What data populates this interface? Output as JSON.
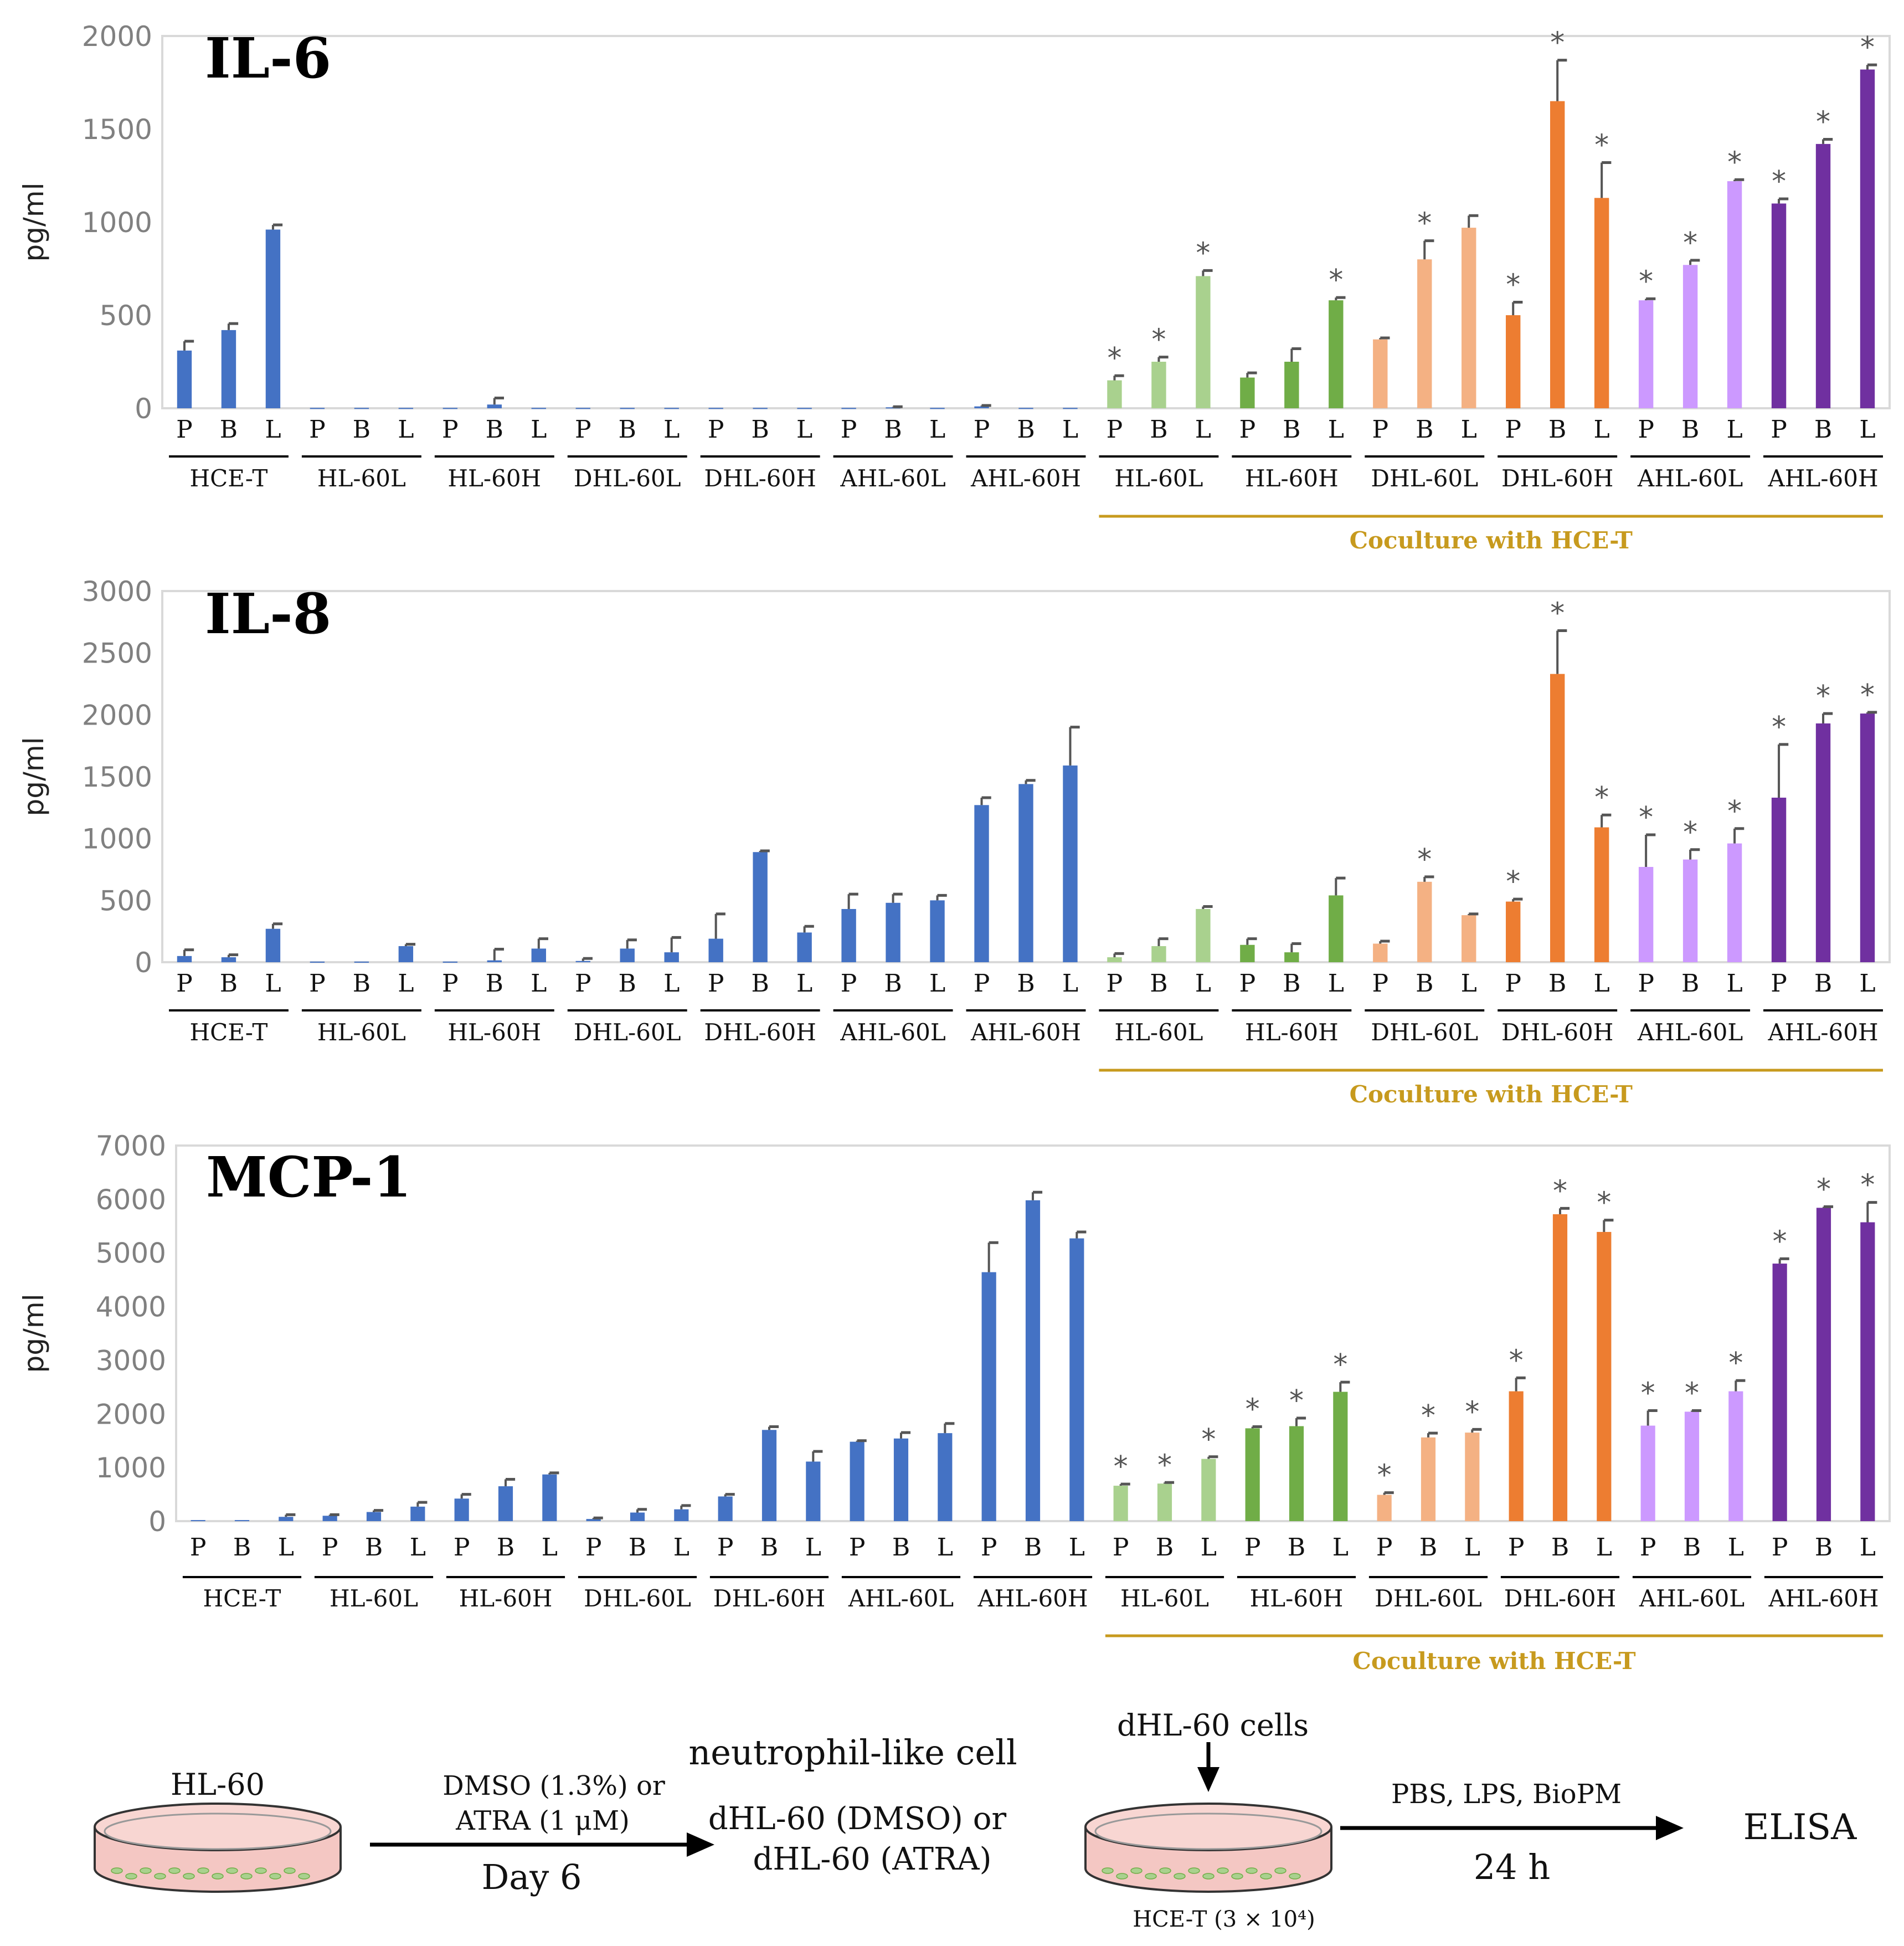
{
  "colors": {
    "blue": "#4472C4",
    "light_green": "#A9D18E",
    "green": "#70AD47",
    "light_orange": "#F4B183",
    "orange": "#ED7D31",
    "light_purple": "#CC99FF",
    "purple": "#7030A0",
    "error": "#555555",
    "coculture": "#C79A1E"
  },
  "chart_data": [
    {
      "type": "bar",
      "title": "IL-6",
      "ylabel": "pg/ml",
      "ylim": [
        0,
        2000
      ],
      "yticks": [
        "0",
        "500",
        "1000",
        "1500",
        "2000"
      ],
      "ytick_values": [
        0,
        500,
        1000,
        1500,
        2000
      ],
      "categories": [
        "P",
        "B",
        "L",
        "P",
        "B",
        "L",
        "P",
        "B",
        "L",
        "P",
        "B",
        "L",
        "P",
        "B",
        "L",
        "P",
        "B",
        "L",
        "P",
        "B",
        "L",
        "P",
        "B",
        "L",
        "P",
        "B",
        "L",
        "P",
        "B",
        "L",
        "P",
        "B",
        "L",
        "P",
        "B",
        "L",
        "P",
        "B",
        "L"
      ],
      "groups": [
        "HCE-T",
        "HL-60L",
        "HL-60H",
        "DHL-60L",
        "DHL-60H",
        "AHL-60L",
        "AHL-60H",
        "HL-60L",
        "HL-60H",
        "DHL-60L",
        "DHL-60H",
        "AHL-60L",
        "AHL-60H"
      ],
      "group_colors": [
        "blue",
        "blue",
        "blue",
        "blue",
        "blue",
        "blue",
        "blue",
        "light_green",
        "green",
        "light_orange",
        "orange",
        "light_purple",
        "purple"
      ],
      "values": [
        310,
        420,
        960,
        2,
        2,
        2,
        2,
        20,
        2,
        2,
        2,
        2,
        2,
        2,
        2,
        2,
        5,
        2,
        10,
        2,
        2,
        150,
        250,
        710,
        165,
        250,
        580,
        370,
        800,
        970,
        500,
        1650,
        1130,
        580,
        770,
        1220,
        1100,
        1420,
        1820
      ],
      "errors": [
        50,
        35,
        25,
        0,
        0,
        0,
        0,
        35,
        0,
        0,
        0,
        0,
        0,
        0,
        0,
        0,
        3,
        0,
        5,
        0,
        0,
        25,
        25,
        30,
        25,
        70,
        15,
        8,
        100,
        65,
        70,
        220,
        190,
        8,
        25,
        8,
        25,
        25,
        25
      ],
      "significant": [
        false,
        false,
        false,
        false,
        false,
        false,
        false,
        false,
        false,
        false,
        false,
        false,
        false,
        false,
        false,
        false,
        false,
        false,
        false,
        false,
        false,
        true,
        true,
        true,
        false,
        false,
        true,
        false,
        true,
        false,
        true,
        true,
        true,
        true,
        true,
        true,
        true,
        true,
        true
      ],
      "coculture_label": "Coculture with HCE-T"
    },
    {
      "type": "bar",
      "title": "IL-8",
      "ylabel": "pg/ml",
      "ylim": [
        0,
        3000
      ],
      "yticks": [
        "0",
        "500",
        "1000",
        "1500",
        "2000",
        "2500",
        "3000"
      ],
      "ytick_values": [
        0,
        500,
        1000,
        1500,
        2000,
        2500,
        3000
      ],
      "categories": [
        "P",
        "B",
        "L",
        "P",
        "B",
        "L",
        "P",
        "B",
        "L",
        "P",
        "B",
        "L",
        "P",
        "B",
        "L",
        "P",
        "B",
        "L",
        "P",
        "B",
        "L",
        "P",
        "B",
        "L",
        "P",
        "B",
        "L",
        "P",
        "B",
        "L",
        "P",
        "B",
        "L",
        "P",
        "B",
        "L",
        "P",
        "B",
        "L"
      ],
      "groups": [
        "HCE-T",
        "HL-60L",
        "HL-60H",
        "DHL-60L",
        "DHL-60H",
        "AHL-60L",
        "AHL-60H",
        "HL-60L",
        "HL-60H",
        "DHL-60L",
        "DHL-60H",
        "AHL-60L",
        "AHL-60H"
      ],
      "group_colors": [
        "blue",
        "blue",
        "blue",
        "blue",
        "blue",
        "blue",
        "blue",
        "light_green",
        "green",
        "light_orange",
        "orange",
        "light_purple",
        "purple"
      ],
      "values": [
        50,
        40,
        270,
        5,
        5,
        130,
        5,
        15,
        110,
        10,
        110,
        80,
        190,
        890,
        240,
        430,
        480,
        500,
        1270,
        1440,
        1590,
        40,
        130,
        430,
        140,
        80,
        540,
        150,
        650,
        380,
        490,
        2330,
        1090,
        770,
        830,
        960,
        1330,
        1930,
        2010
      ],
      "errors": [
        50,
        20,
        40,
        0,
        0,
        15,
        0,
        90,
        80,
        20,
        70,
        120,
        200,
        10,
        50,
        120,
        70,
        40,
        60,
        30,
        310,
        30,
        60,
        20,
        50,
        70,
        140,
        20,
        40,
        10,
        20,
        350,
        100,
        260,
        80,
        120,
        430,
        80,
        10
      ],
      "significant": [
        false,
        false,
        false,
        false,
        false,
        false,
        false,
        false,
        false,
        false,
        false,
        false,
        false,
        false,
        false,
        false,
        false,
        false,
        false,
        false,
        false,
        false,
        false,
        false,
        false,
        false,
        false,
        false,
        true,
        false,
        true,
        true,
        true,
        true,
        true,
        true,
        true,
        true,
        true
      ],
      "coculture_label": "Coculture with HCE-T"
    },
    {
      "type": "bar",
      "title": "MCP-1",
      "ylabel": "pg/ml",
      "ylim": [
        0,
        7000
      ],
      "yticks": [
        "0",
        "1000",
        "2000",
        "3000",
        "4000",
        "5000",
        "6000",
        "7000"
      ],
      "ytick_values": [
        0,
        1000,
        2000,
        3000,
        4000,
        5000,
        6000,
        7000
      ],
      "categories": [
        "P",
        "B",
        "L",
        "P",
        "B",
        "L",
        "P",
        "B",
        "L",
        "P",
        "B",
        "L",
        "P",
        "B",
        "L",
        "P",
        "B",
        "L",
        "P",
        "B",
        "L",
        "P",
        "B",
        "L",
        "P",
        "B",
        "L",
        "P",
        "B",
        "L",
        "P",
        "B",
        "L",
        "P",
        "B",
        "L",
        "P",
        "B",
        "L"
      ],
      "groups": [
        "HCE-T",
        "HL-60L",
        "HL-60H",
        "DHL-60L",
        "DHL-60H",
        "AHL-60L",
        "AHL-60H",
        "HL-60L",
        "HL-60H",
        "DHL-60L",
        "DHL-60H",
        "AHL-60L",
        "AHL-60H"
      ],
      "group_colors": [
        "blue",
        "blue",
        "blue",
        "blue",
        "blue",
        "blue",
        "blue",
        "light_green",
        "green",
        "light_orange",
        "orange",
        "light_purple",
        "purple"
      ],
      "values": [
        20,
        20,
        80,
        100,
        170,
        270,
        420,
        650,
        870,
        40,
        160,
        220,
        460,
        1700,
        1110,
        1480,
        1540,
        1640,
        4640,
        5980,
        5270,
        660,
        700,
        1160,
        1730,
        1770,
        2410,
        490,
        1560,
        1650,
        2420,
        5720,
        5390,
        1780,
        2040,
        2420,
        4800,
        5840,
        5570
      ],
      "errors": [
        0,
        0,
        40,
        20,
        30,
        80,
        80,
        130,
        30,
        20,
        60,
        70,
        40,
        60,
        190,
        20,
        110,
        180,
        550,
        150,
        120,
        30,
        20,
        40,
        30,
        150,
        180,
        40,
        80,
        60,
        250,
        110,
        220,
        280,
        20,
        200,
        90,
        20,
        370
      ],
      "significant": [
        false,
        false,
        false,
        false,
        false,
        false,
        false,
        false,
        false,
        false,
        false,
        false,
        false,
        false,
        false,
        false,
        false,
        false,
        false,
        false,
        false,
        true,
        true,
        true,
        true,
        true,
        true,
        true,
        true,
        true,
        true,
        true,
        true,
        true,
        true,
        true,
        true,
        true,
        true
      ],
      "coculture_label": "Coculture with HCE-T"
    }
  ],
  "workflow": {
    "dish1_label": "HL-60",
    "arrow1_top": "DMSO (1.3%) or",
    "arrow1_mid": "ATRA (1 μM)",
    "arrow1_bottom": "Day 6",
    "cell_type": "neutrophil-like cell",
    "product_line1": "dHL-60 (DMSO) or",
    "product_line2": "dHL-60 (ATRA)",
    "add_cells": "dHL-60 cells",
    "dish2_label": "HCE-T (3 × 10⁴)",
    "arrow2_top": "PBS, LPS, BioPM",
    "arrow2_bottom": "24 h",
    "readout": "ELISA"
  }
}
